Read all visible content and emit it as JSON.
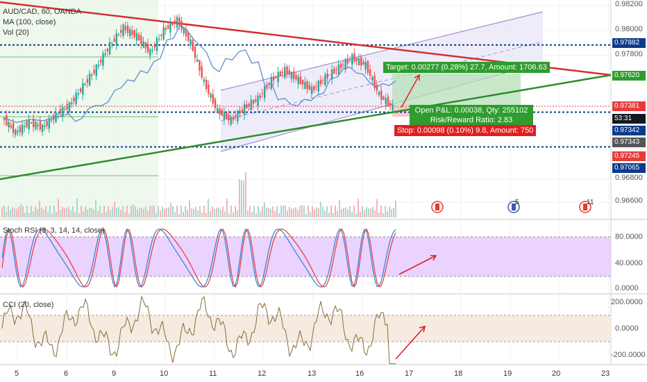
{
  "header": {
    "symbol_line": "AUD/CAD, 60, OANDA",
    "indicator_1": "MA (100, close)",
    "indicator_2": "Vol (20)"
  },
  "panes": {
    "stoch_rsi_label": "Stoch RSI (3, 3, 14, 14, close)",
    "cci_label": "CCI (20, close)"
  },
  "price_axis": {
    "ticks": [
      "0.98200",
      "0.98000",
      "0.97800",
      "0.96800",
      "0.96600"
    ],
    "tags": [
      {
        "text": "0.97882",
        "color": "#0d3a8a"
      },
      {
        "text": "0.97620",
        "color": "#2e9c2e"
      },
      {
        "text": "0.97381",
        "color": "#e63c3c"
      },
      {
        "text": "53:31",
        "color": "#131722"
      },
      {
        "text": "0.97342",
        "color": "#0d3a8a"
      },
      {
        "text": "0.97343",
        "color": "#555555"
      },
      {
        "text": "0.97245",
        "color": "#e63c3c"
      },
      {
        "text": "0.97065",
        "color": "#0d3a8a"
      }
    ]
  },
  "stoch_axis": [
    "80.0000",
    "40.0000",
    "0.0000"
  ],
  "cci_axis": [
    "200.0000",
    "0.0000",
    "-200.0000"
  ],
  "x_axis": [
    "5",
    "6",
    "9",
    "10",
    "11",
    "12",
    "13",
    "16",
    "17",
    "18",
    "19",
    "20",
    "23"
  ],
  "position": {
    "target": "Target: 0.00277 (0.28%) 27.7, Amount: 1706.63",
    "open": "Open P&L: 0.00038, Qty: 255102",
    "risk_reward": "Risk/Reward Ratio: 2.83",
    "stop": "Stop: 0.00098 (0.10%) 9.8, Amount: 750"
  },
  "events": {
    "event_2_count": "5",
    "event_3_count": "11"
  },
  "colors": {
    "up": "#26a69a",
    "down": "#ef5350",
    "ma": "#5b8fd0",
    "trend_red": "#d32f2f",
    "trend_green": "#2e8b2e",
    "channel": "#9c8fcf",
    "stoch_fill": "#e6c8ff",
    "cci_fill": "#f5ebe0"
  },
  "chart_data": {
    "type": "candlestick",
    "symbol": "AUD/CAD",
    "interval": "60",
    "x_labels": [
      "5",
      "6",
      "9",
      "10",
      "11",
      "12",
      "13",
      "16",
      "17",
      "18",
      "19",
      "20",
      "23"
    ],
    "price_range": [
      0.965,
      0.9822
    ],
    "price_path": [
      0.973,
      0.9718,
      0.9726,
      0.9722,
      0.9732,
      0.974,
      0.9755,
      0.977,
      0.9788,
      0.9802,
      0.9795,
      0.9782,
      0.98,
      0.9808,
      0.979,
      0.9758,
      0.9735,
      0.9728,
      0.9738,
      0.9745,
      0.976,
      0.9768,
      0.976,
      0.9752,
      0.9762,
      0.977,
      0.9778,
      0.9772,
      0.9748,
      0.9738
    ],
    "horizontal_levels": [
      0.97882,
      0.97343,
      0.97065
    ],
    "stoch_rsi_range": [
      0,
      100
    ],
    "cci_range": [
      -250,
      250
    ]
  }
}
